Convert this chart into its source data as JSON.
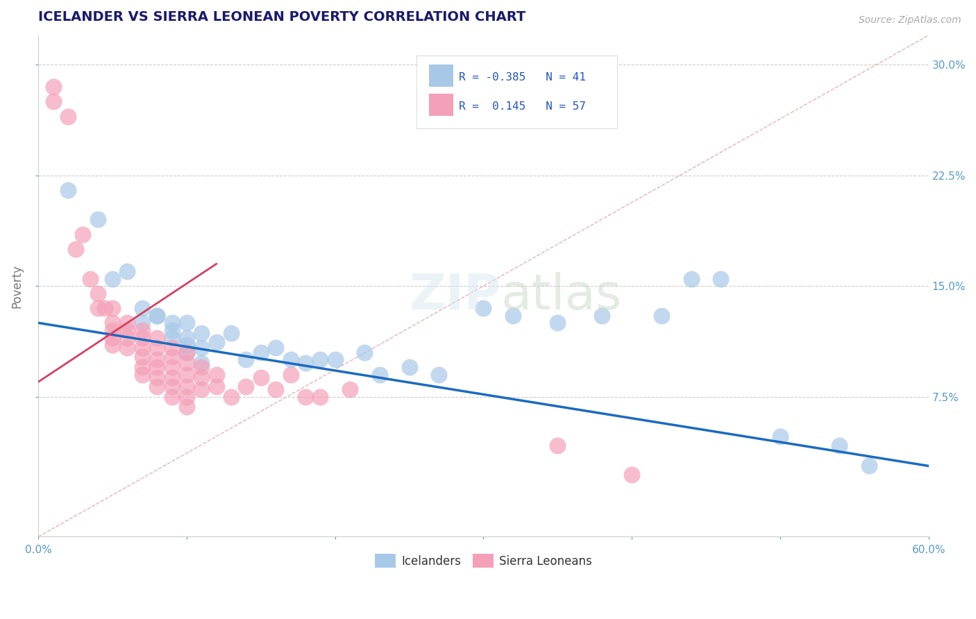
{
  "title": "ICELANDER VS SIERRA LEONEAN POVERTY CORRELATION CHART",
  "source_text": "Source: ZipAtlas.com",
  "ylabel": "Poverty",
  "xlim": [
    0.0,
    0.6
  ],
  "ylim": [
    -0.02,
    0.32
  ],
  "xticks": [
    0.0,
    0.1,
    0.2,
    0.3,
    0.4,
    0.5,
    0.6
  ],
  "xticklabels_ends": [
    "0.0%",
    "60.0%"
  ],
  "yticks": [
    0.075,
    0.15,
    0.225,
    0.3
  ],
  "yticklabels": [
    "7.5%",
    "15.0%",
    "22.5%",
    "30.0%"
  ],
  "blue_color": "#a8c8e8",
  "pink_color": "#f4a0b8",
  "blue_line_color": "#1a6bbf",
  "pink_line_color": "#d44060",
  "diag_color": "#e8b0b8",
  "r_blue": -0.385,
  "n_blue": 41,
  "r_pink": 0.145,
  "n_pink": 57,
  "background_color": "#ffffff",
  "grid_color": "#cccccc",
  "title_color": "#1a1a6e",
  "axis_label_color": "#777777",
  "tick_label_color": "#5599cc",
  "legend_label_blue": "Icelanders",
  "legend_label_pink": "Sierra Leoneans",
  "blue_line_x": [
    0.0,
    0.6
  ],
  "blue_line_y": [
    0.125,
    0.028
  ],
  "pink_line_x": [
    0.0,
    0.12
  ],
  "pink_line_y": [
    0.085,
    0.165
  ],
  "blue_scatter": [
    [
      0.02,
      0.215
    ],
    [
      0.04,
      0.195
    ],
    [
      0.05,
      0.155
    ],
    [
      0.06,
      0.16
    ],
    [
      0.07,
      0.135
    ],
    [
      0.07,
      0.125
    ],
    [
      0.08,
      0.13
    ],
    [
      0.08,
      0.13
    ],
    [
      0.09,
      0.125
    ],
    [
      0.09,
      0.12
    ],
    [
      0.09,
      0.115
    ],
    [
      0.1,
      0.125
    ],
    [
      0.1,
      0.115
    ],
    [
      0.1,
      0.11
    ],
    [
      0.1,
      0.105
    ],
    [
      0.11,
      0.118
    ],
    [
      0.11,
      0.108
    ],
    [
      0.11,
      0.098
    ],
    [
      0.12,
      0.112
    ],
    [
      0.13,
      0.118
    ],
    [
      0.14,
      0.1
    ],
    [
      0.15,
      0.105
    ],
    [
      0.16,
      0.108
    ],
    [
      0.17,
      0.1
    ],
    [
      0.18,
      0.098
    ],
    [
      0.19,
      0.1
    ],
    [
      0.2,
      0.1
    ],
    [
      0.22,
      0.105
    ],
    [
      0.23,
      0.09
    ],
    [
      0.25,
      0.095
    ],
    [
      0.27,
      0.09
    ],
    [
      0.3,
      0.135
    ],
    [
      0.32,
      0.13
    ],
    [
      0.35,
      0.125
    ],
    [
      0.38,
      0.13
    ],
    [
      0.42,
      0.13
    ],
    [
      0.44,
      0.155
    ],
    [
      0.5,
      0.048
    ],
    [
      0.54,
      0.042
    ],
    [
      0.56,
      0.028
    ],
    [
      0.46,
      0.155
    ]
  ],
  "pink_scatter": [
    [
      0.01,
      0.285
    ],
    [
      0.01,
      0.275
    ],
    [
      0.02,
      0.265
    ],
    [
      0.025,
      0.175
    ],
    [
      0.03,
      0.185
    ],
    [
      0.035,
      0.155
    ],
    [
      0.04,
      0.145
    ],
    [
      0.04,
      0.135
    ],
    [
      0.045,
      0.135
    ],
    [
      0.05,
      0.135
    ],
    [
      0.05,
      0.125
    ],
    [
      0.05,
      0.12
    ],
    [
      0.05,
      0.115
    ],
    [
      0.05,
      0.11
    ],
    [
      0.06,
      0.125
    ],
    [
      0.06,
      0.12
    ],
    [
      0.06,
      0.115
    ],
    [
      0.06,
      0.108
    ],
    [
      0.07,
      0.12
    ],
    [
      0.07,
      0.115
    ],
    [
      0.07,
      0.108
    ],
    [
      0.07,
      0.102
    ],
    [
      0.07,
      0.095
    ],
    [
      0.07,
      0.09
    ],
    [
      0.08,
      0.115
    ],
    [
      0.08,
      0.108
    ],
    [
      0.08,
      0.1
    ],
    [
      0.08,
      0.095
    ],
    [
      0.08,
      0.088
    ],
    [
      0.08,
      0.082
    ],
    [
      0.09,
      0.108
    ],
    [
      0.09,
      0.102
    ],
    [
      0.09,
      0.095
    ],
    [
      0.09,
      0.088
    ],
    [
      0.09,
      0.082
    ],
    [
      0.09,
      0.075
    ],
    [
      0.1,
      0.105
    ],
    [
      0.1,
      0.098
    ],
    [
      0.1,
      0.09
    ],
    [
      0.1,
      0.082
    ],
    [
      0.1,
      0.075
    ],
    [
      0.1,
      0.068
    ],
    [
      0.11,
      0.095
    ],
    [
      0.11,
      0.088
    ],
    [
      0.11,
      0.08
    ],
    [
      0.12,
      0.09
    ],
    [
      0.12,
      0.082
    ],
    [
      0.13,
      0.075
    ],
    [
      0.14,
      0.082
    ],
    [
      0.15,
      0.088
    ],
    [
      0.16,
      0.08
    ],
    [
      0.17,
      0.09
    ],
    [
      0.18,
      0.075
    ],
    [
      0.19,
      0.075
    ],
    [
      0.21,
      0.08
    ],
    [
      0.35,
      0.042
    ],
    [
      0.4,
      0.022
    ]
  ]
}
